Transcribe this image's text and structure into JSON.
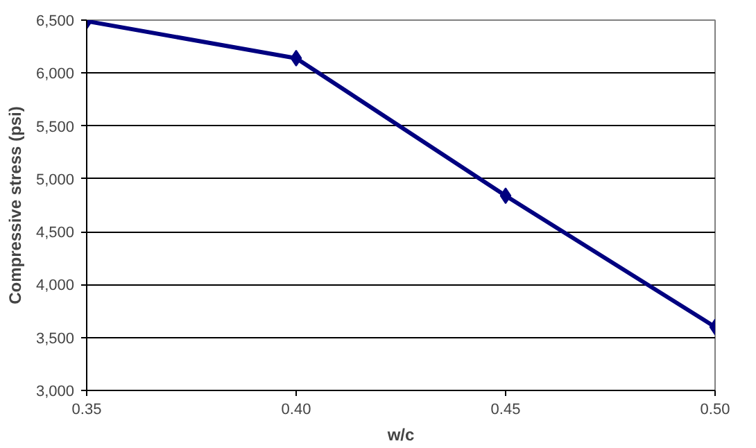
{
  "chart_data": {
    "type": "line",
    "xlabel": "w/c",
    "ylabel": "Compressive stress (psi)",
    "x": [
      0.35,
      0.4,
      0.45,
      0.5
    ],
    "series": [
      {
        "color": "#000080",
        "values": [
          6490,
          6140,
          4840,
          3600
        ]
      }
    ],
    "xlim": [
      0.35,
      0.5
    ],
    "xticks": [
      {
        "value": 0.35,
        "label": "0.35"
      },
      {
        "value": 0.4,
        "label": "0.40"
      },
      {
        "value": 0.45,
        "label": "0.45"
      },
      {
        "value": 0.5,
        "label": "0.50"
      }
    ],
    "ylim": [
      3000,
      6500
    ],
    "yticks": [
      {
        "value": 3000,
        "label": "3,000"
      },
      {
        "value": 3500,
        "label": "3,500"
      },
      {
        "value": 4000,
        "label": "4,000"
      },
      {
        "value": 4500,
        "label": "4,500"
      },
      {
        "value": 5000,
        "label": "5,000"
      },
      {
        "value": 5500,
        "label": "5,500"
      },
      {
        "value": 6000,
        "label": "6,000"
      },
      {
        "value": 6500,
        "label": "6,500"
      }
    ],
    "grid": "y",
    "marker": "diamond",
    "line_style": "solid"
  }
}
